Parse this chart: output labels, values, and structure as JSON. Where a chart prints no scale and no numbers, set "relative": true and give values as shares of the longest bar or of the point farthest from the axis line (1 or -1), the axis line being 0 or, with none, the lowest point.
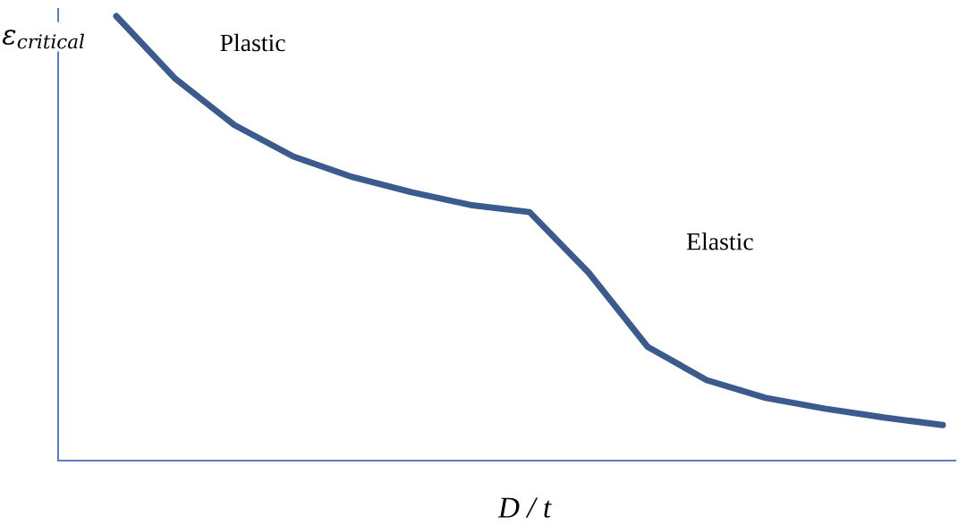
{
  "chart_data": {
    "type": "line",
    "relative": true,
    "xlabel": "D / t",
    "ylabel": "ε$_{critical}$",
    "categories": [
      null,
      null,
      null,
      null,
      null,
      null,
      null,
      null,
      null,
      null,
      null,
      null,
      null,
      null,
      null
    ],
    "series": [
      {
        "color": "#3b5a8e",
        "values": [
          1,
          0.859,
          0.755,
          0.684,
          0.638,
          0.604,
          0.575,
          0.559,
          0.423,
          0.256,
          0.181,
          0.141,
          0.117,
          0.097,
          0.08
        ]
      }
    ],
    "annotations": [
      "Plastic",
      "Elastic"
    ],
    "grid": false,
    "legend": false,
    "marker": "none",
    "line_style": "solid"
  }
}
